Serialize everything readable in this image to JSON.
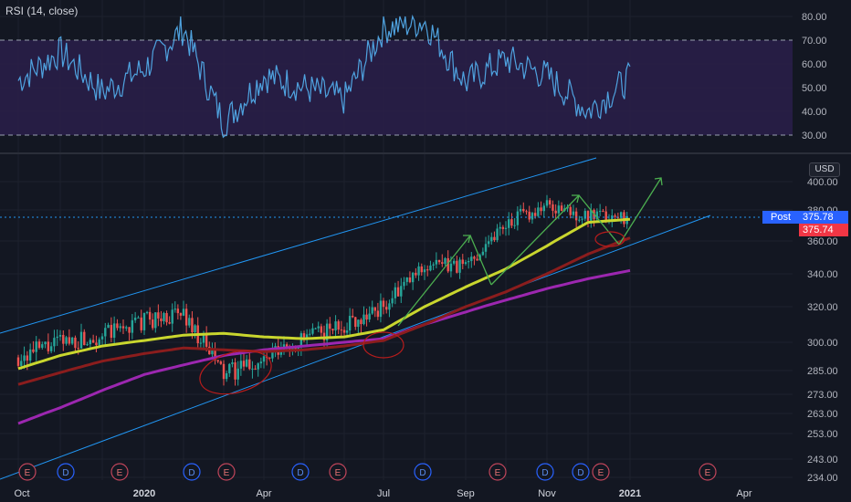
{
  "rsi_panel": {
    "label": "RSI (14, close)",
    "upper_band": 70,
    "lower_band": 30,
    "axis_ticks": [
      "80.00",
      "70.00",
      "60.00",
      "50.00",
      "40.00",
      "30.00"
    ]
  },
  "price_panel": {
    "currency_button": "USD",
    "post_label": "Post",
    "post_price": "375.78",
    "last_price": "375.74",
    "axis_ticks": [
      "400.00",
      "380.00",
      "360.00",
      "340.00",
      "320.00",
      "300.00",
      "285.00",
      "273.00",
      "263.00",
      "253.00",
      "243.00",
      "234.00"
    ]
  },
  "time_axis": {
    "labels": [
      "Oct",
      "2020",
      "Apr",
      "Jul",
      "Sep",
      "Nov",
      "2021",
      "Apr"
    ]
  },
  "events": [
    "E",
    "D",
    "E",
    "D",
    "E",
    "D",
    "E",
    "D",
    "E",
    "D",
    "D",
    "E",
    "E"
  ],
  "colors": {
    "background": "#131722",
    "up_candle": "#26a69a",
    "down_candle": "#ef5350",
    "ma_short": "#c9d62e",
    "ma_mid": "#8b1d1d",
    "ma_long": "#9c27b0",
    "channel": "#2196f3",
    "rsi_line": "#4fa3e0",
    "rsi_band_fill": "#2a1f4a",
    "annotation_arrows": "#4caf50",
    "annotation_circles": "#b71c1c",
    "post_tag": "#2962ff",
    "last_price_tag": "#f23645"
  },
  "chart_data": [
    {
      "type": "line",
      "title": "RSI (14, close)",
      "ylim": [
        25,
        82
      ],
      "x": [
        "2019-10",
        "2019-11",
        "2019-12",
        "2020-01",
        "2020-02",
        "2020-03",
        "2020-04",
        "2020-05",
        "2020-06",
        "2020-07",
        "2020-08",
        "2020-09",
        "2020-10",
        "2020-11",
        "2020-12",
        "2021-01"
      ],
      "series": [
        {
          "name": "RSI",
          "values": [
            53,
            65,
            48,
            58,
            75,
            35,
            55,
            50,
            45,
            75,
            78,
            52,
            62,
            55,
            40,
            54
          ]
        }
      ]
    },
    {
      "type": "line",
      "xlabel": "",
      "ylabel": "USD",
      "ylim": [
        234,
        410
      ],
      "x": [
        "2019-10",
        "2019-11",
        "2019-12",
        "2020-01",
        "2020-02",
        "2020-03",
        "2020-04",
        "2020-05",
        "2020-06",
        "2020-07",
        "2020-08",
        "2020-09",
        "2020-10",
        "2020-11",
        "2020-12",
        "2021-01"
      ],
      "series": [
        {
          "values": [
            292,
            300,
            304,
            312,
            316,
            283,
            290,
            302,
            310,
            320,
            345,
            345,
            372,
            383,
            375,
            376
          ]
        },
        {
          "values": [
            286,
            293,
            298,
            301,
            304,
            305,
            303,
            302,
            303,
            307,
            320,
            332,
            343,
            357,
            372,
            374
          ]
        },
        {
          "values": [
            278,
            284,
            290,
            294,
            297,
            296,
            295,
            296,
            298,
            301,
            310,
            320,
            329,
            340,
            352,
            362
          ]
        },
        {
          "values": [
            258,
            266,
            275,
            283,
            288,
            293,
            296,
            298,
            300,
            302,
            310,
            317,
            324,
            331,
            337,
            342
          ]
        }
      ]
    }
  ]
}
